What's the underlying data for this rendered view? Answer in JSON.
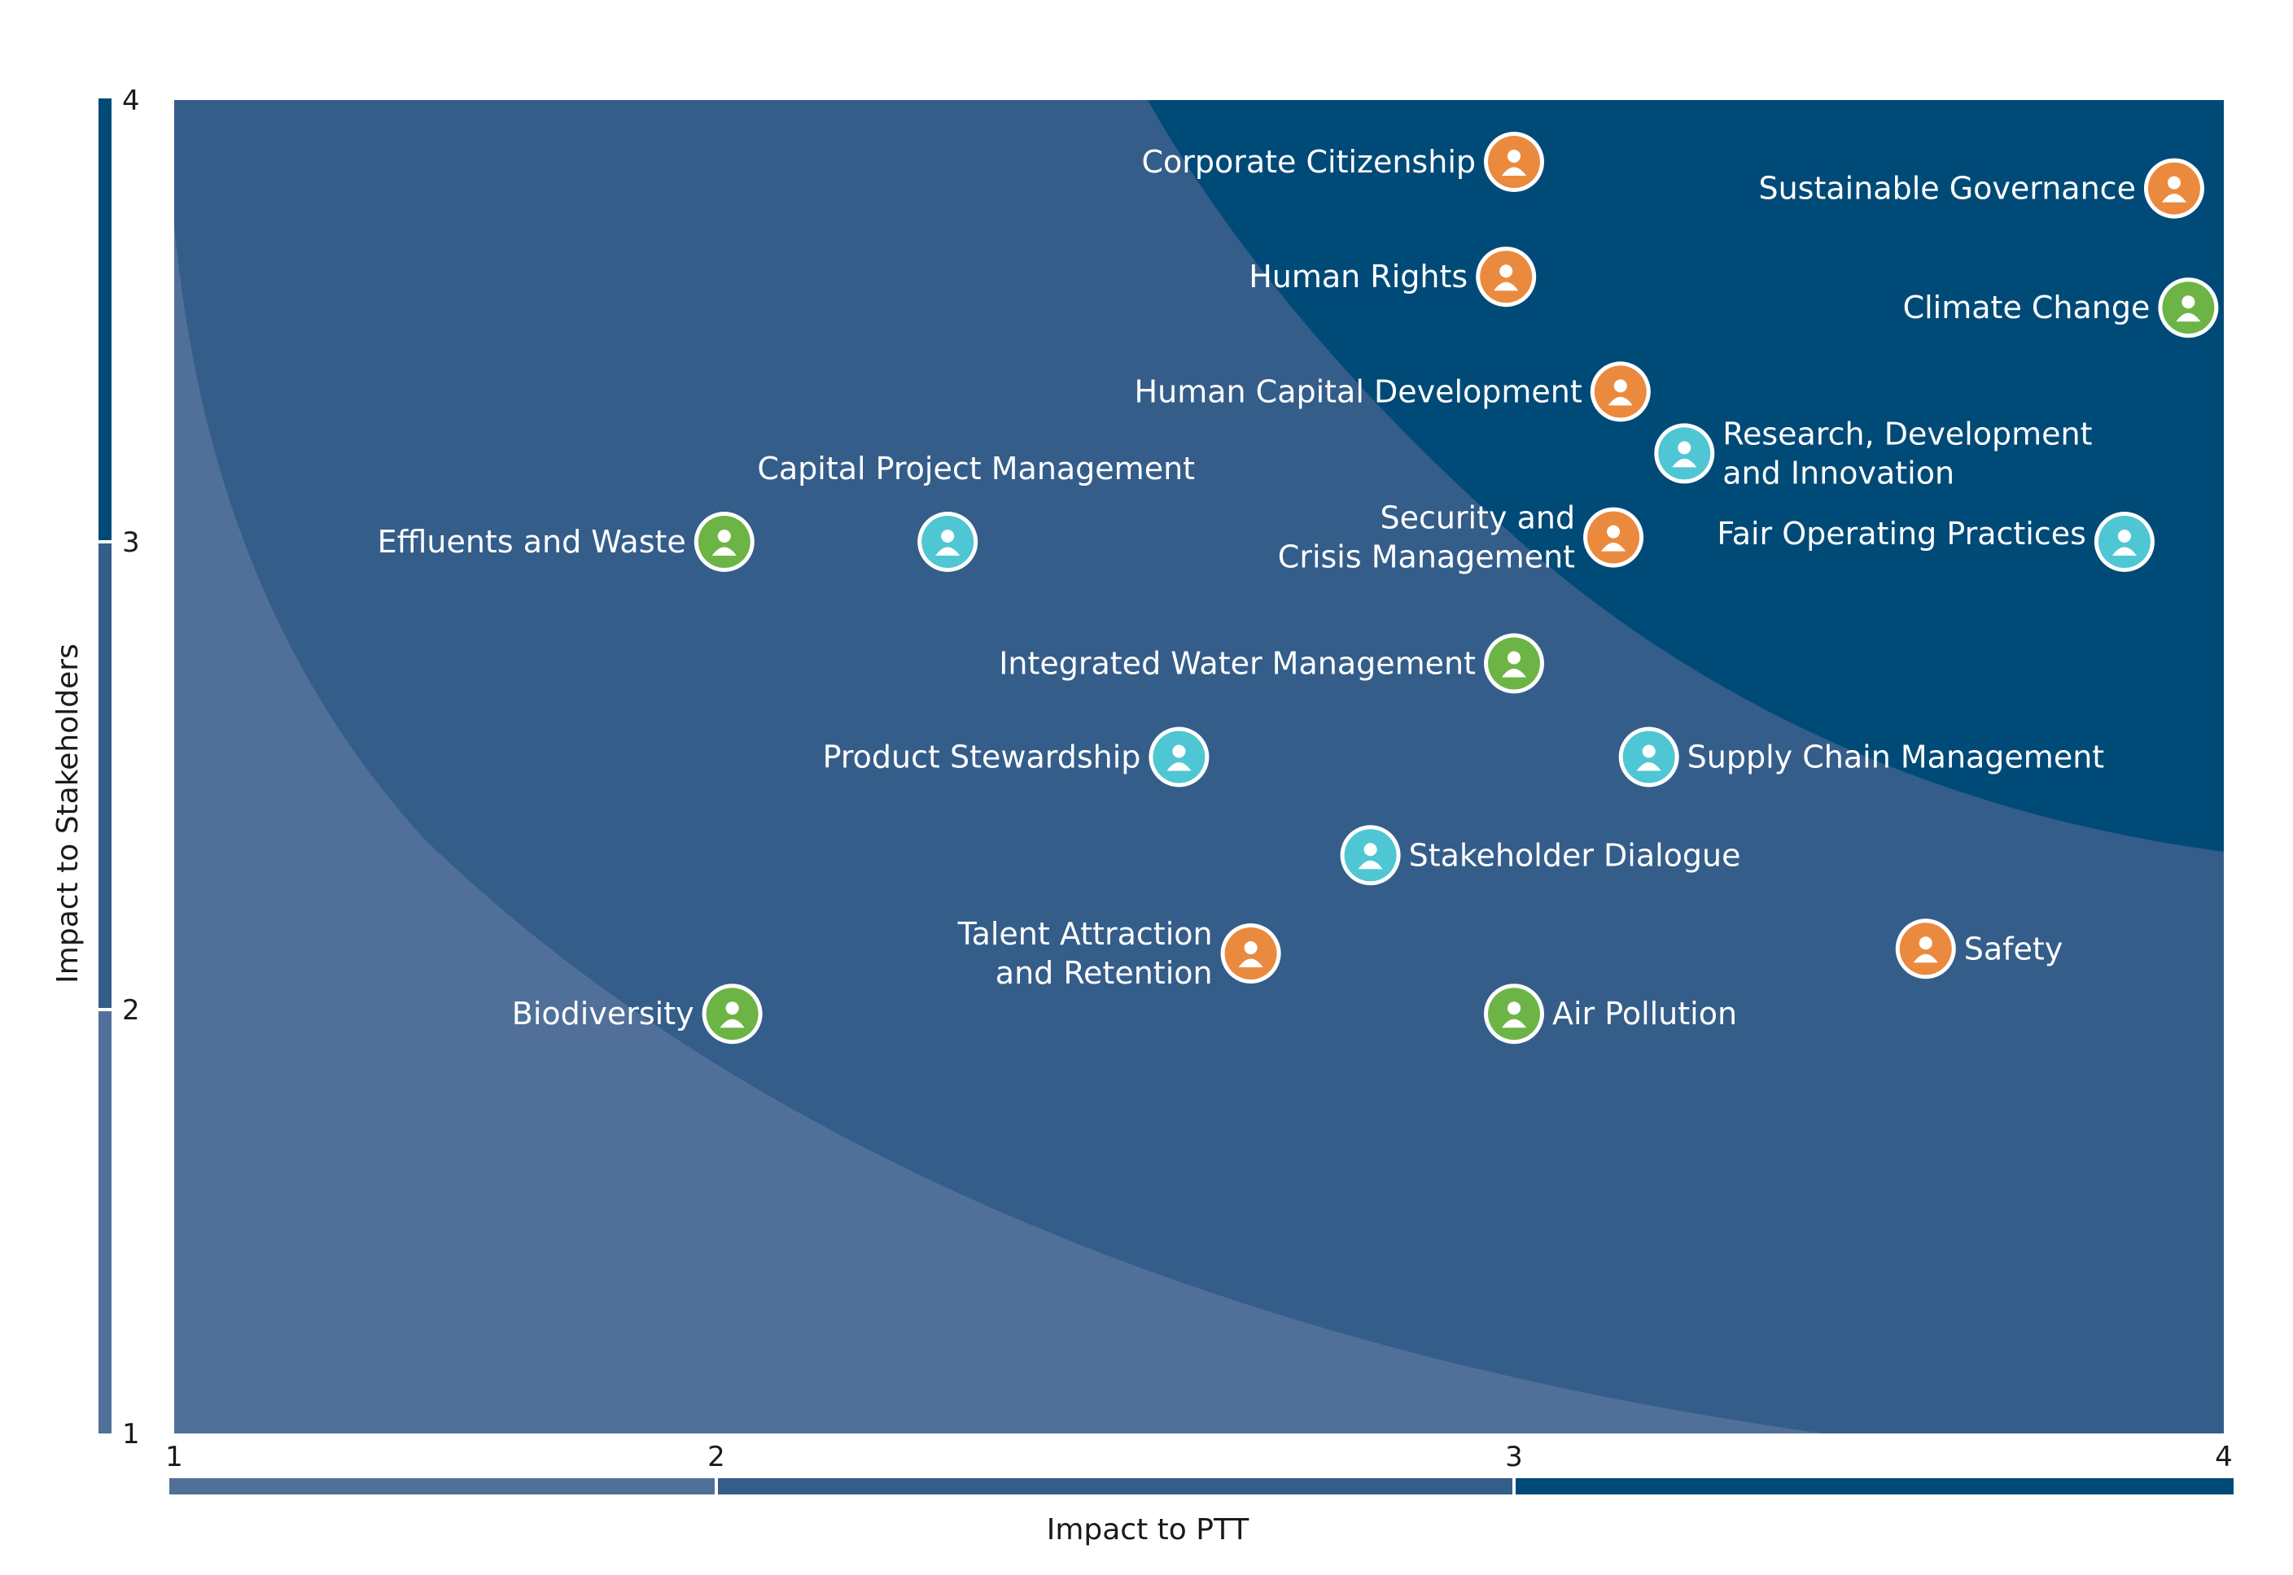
{
  "chart_data": {
    "type": "scatter",
    "xlabel": "Impact to PTT",
    "ylabel": "Impact to Stakeholders",
    "xlim": [
      1,
      4
    ],
    "ylim": [
      1,
      4
    ],
    "x_ticks": [
      "1",
      "2",
      "3",
      "4"
    ],
    "y_ticks": [
      "1",
      "2",
      "3",
      "4"
    ],
    "category_colors": {
      "governance": "#ea8a3f",
      "environment": "#6db446",
      "social": "#4fc6d3"
    },
    "zone_colors": {
      "low": "#50709a",
      "medium": "#345d8a",
      "high": "#004a78"
    },
    "points": [
      {
        "label": "Corporate Citizenship",
        "x": 3.0,
        "y": 3.86,
        "category": "governance",
        "icon": "bank-icon"
      },
      {
        "label": "Sustainable Governance",
        "x": 3.93,
        "y": 3.8,
        "category": "governance",
        "icon": "shield-building-icon"
      },
      {
        "label": "Human Rights",
        "x": 2.99,
        "y": 3.6,
        "category": "governance",
        "icon": "people-icon"
      },
      {
        "label": "Climate Change",
        "x": 3.95,
        "y": 3.53,
        "category": "environment",
        "icon": "globe-icon"
      },
      {
        "label": "Human Capital Development",
        "x": 3.15,
        "y": 3.34,
        "category": "governance",
        "icon": "teacher-icon"
      },
      {
        "label": "Research, Development and Innovation",
        "x": 3.24,
        "y": 3.2,
        "category": "social",
        "icon": "dna-icon"
      },
      {
        "label": "Capital Project Management",
        "x": 2.29,
        "y": 3.0,
        "category": "social",
        "icon": "presentation-icon"
      },
      {
        "label": "Effluents and Waste",
        "x": 2.01,
        "y": 3.0,
        "category": "environment",
        "icon": "trash-icon"
      },
      {
        "label": "Security and Crisis Management",
        "x": 3.14,
        "y": 3.01,
        "category": "governance",
        "icon": "security-guard-icon"
      },
      {
        "label": "Fair Operating Practices",
        "x": 3.86,
        "y": 3.0,
        "category": "social",
        "icon": "handshake-icon"
      },
      {
        "label": "Integrated Water Management",
        "x": 3.0,
        "y": 2.74,
        "category": "environment",
        "icon": "water-tap-icon"
      },
      {
        "label": "Product Stewardship",
        "x": 2.58,
        "y": 2.54,
        "category": "social",
        "icon": "hand-drop-icon"
      },
      {
        "label": "Supply Chain Management",
        "x": 3.19,
        "y": 2.54,
        "category": "social",
        "icon": "truck-cycle-icon"
      },
      {
        "label": "Stakeholder Dialogue",
        "x": 2.82,
        "y": 2.33,
        "category": "social",
        "icon": "meeting-icon"
      },
      {
        "label": "Talent Attraction and Retention",
        "x": 2.67,
        "y": 2.12,
        "category": "governance",
        "icon": "person-gear-icon"
      },
      {
        "label": "Safety",
        "x": 3.58,
        "y": 2.13,
        "category": "governance",
        "icon": "helmet-icon"
      },
      {
        "label": "Biodiversity",
        "x": 2.02,
        "y": 1.99,
        "category": "environment",
        "icon": "leaf-icon"
      },
      {
        "label": "Air Pollution",
        "x": 3.0,
        "y": 1.99,
        "category": "environment",
        "icon": "factory-icon"
      }
    ]
  }
}
